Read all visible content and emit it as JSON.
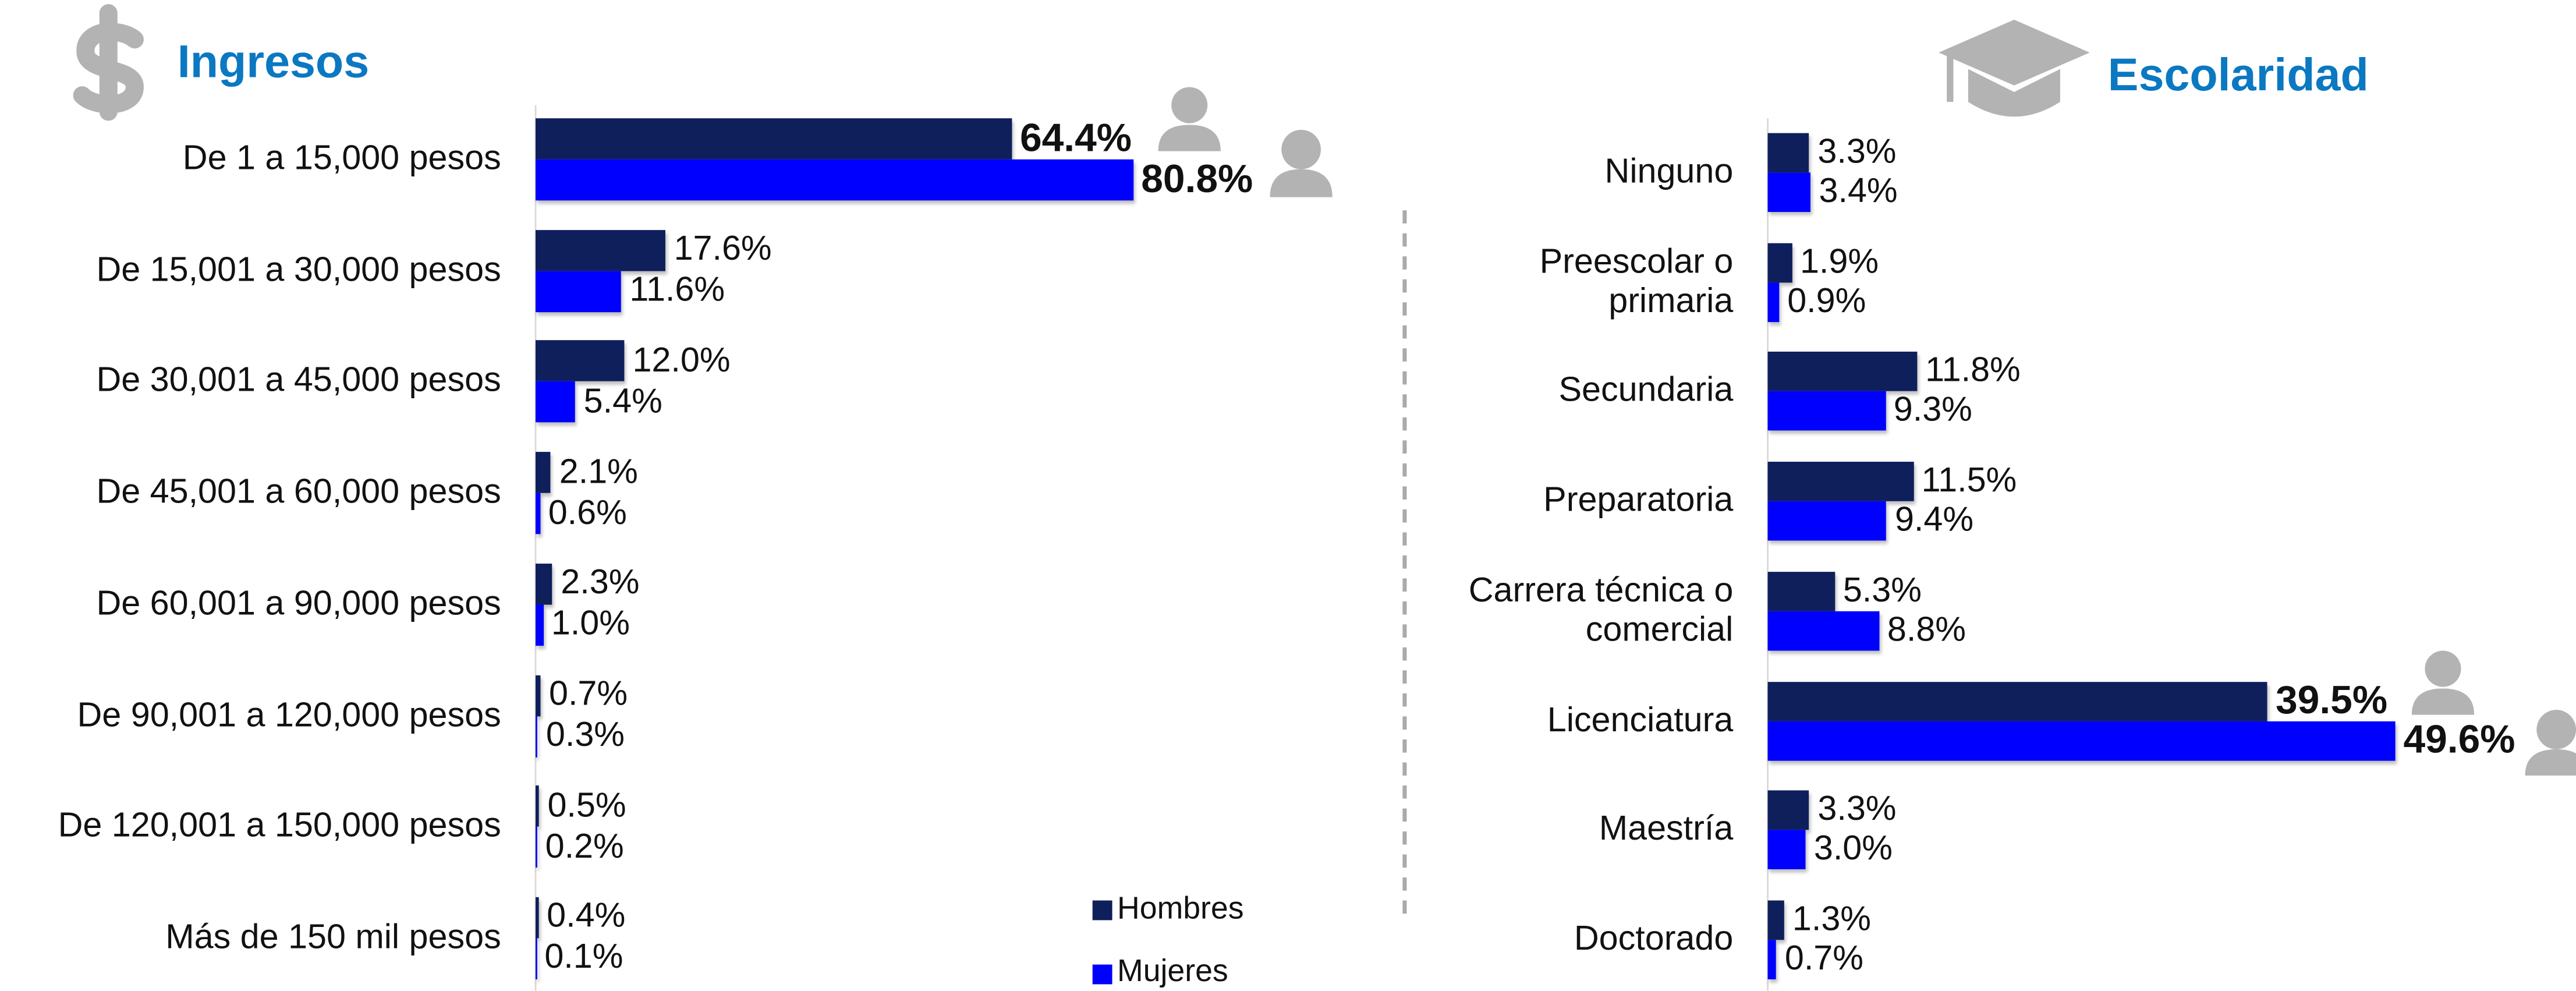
{
  "chart_data": [
    {
      "type": "bar",
      "orientation": "horizontal",
      "title": "Ingresos",
      "categories": [
        "De 1 a 15,000 pesos",
        "De 15,001 a 30,000 pesos",
        "De 30,001 a 45,000 pesos",
        "De 45,001 a 60,000 pesos",
        "De 60,001 a 90,000 pesos",
        "De 90,001 a 120,000 pesos",
        "De 120,001 a 150,000 pesos",
        "Más de 150 mil pesos"
      ],
      "series": [
        {
          "name": "Hombres",
          "color": "#0f1f5c",
          "values": [
            64.4,
            17.6,
            12.0,
            2.1,
            2.3,
            0.7,
            0.5,
            0.4
          ],
          "value_labels": [
            "64.4%",
            "17.6%",
            "12.0%",
            "2.1%",
            "2.3%",
            "0.7%",
            "0.5%",
            "0.4%"
          ]
        },
        {
          "name": "Mujeres",
          "color": "#0000ff",
          "values": [
            80.8,
            11.6,
            5.4,
            0.6,
            1.0,
            0.3,
            0.2,
            0.1
          ],
          "value_labels": [
            "80.8%",
            "11.6%",
            "5.4%",
            "0.6%",
            "1.0%",
            "0.3%",
            "0.2%",
            "0.1%"
          ]
        }
      ]
    },
    {
      "type": "bar",
      "orientation": "horizontal",
      "title": "Escolaridad",
      "categories": [
        "Ninguno",
        "Preescolar o\nprimaria",
        "Secundaria",
        "Preparatoria",
        "Carrera técnica o\ncomercial",
        "Licenciatura",
        "Maestría",
        "Doctorado"
      ],
      "series": [
        {
          "name": "Hombres",
          "color": "#0f1f5c",
          "values": [
            3.3,
            1.9,
            11.8,
            11.5,
            5.3,
            39.5,
            3.3,
            1.3
          ],
          "value_labels": [
            "3.3%",
            "1.9%",
            "11.8%",
            "11.5%",
            "5.3%",
            "39.5%",
            "3.3%",
            "1.3%"
          ]
        },
        {
          "name": "Mujeres",
          "color": "#0000ff",
          "values": [
            3.4,
            0.9,
            9.3,
            9.4,
            8.8,
            49.6,
            3.0,
            0.7
          ],
          "value_labels": [
            "3.4%",
            "0.9%",
            "9.3%",
            "9.4%",
            "8.8%",
            "49.6%",
            "3.0%",
            "0.7%"
          ]
        }
      ]
    }
  ]
}
